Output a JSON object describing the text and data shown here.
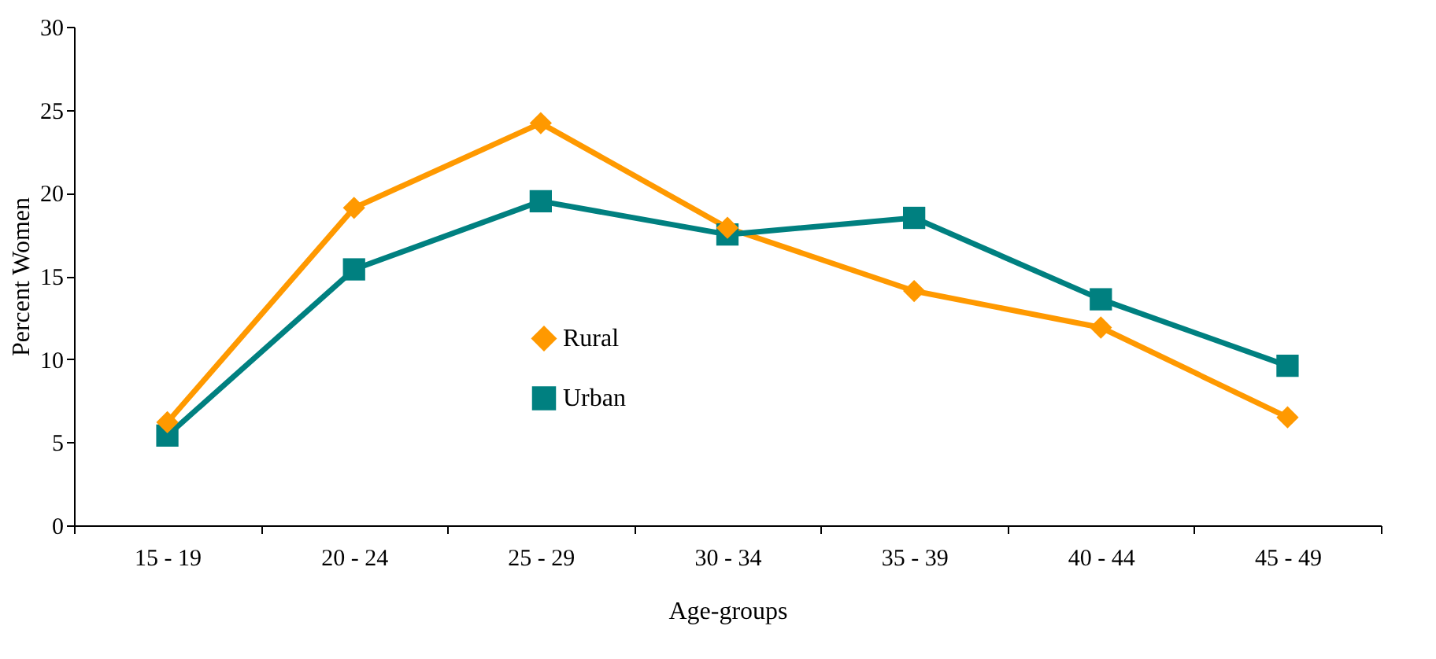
{
  "chart_data": {
    "type": "line",
    "xlabel": "Age-groups",
    "ylabel": "Percent Women",
    "categories": [
      "15 - 19",
      "20 - 24",
      "25 - 29",
      "30 - 34",
      "35 - 39",
      "40 - 44",
      "45 - 49"
    ],
    "series": [
      {
        "name": "Rural",
        "color": "#ff9900",
        "marker": "diamond",
        "values": [
          6.2,
          19.1,
          24.2,
          17.9,
          14.1,
          11.9,
          6.5
        ]
      },
      {
        "name": "Urban",
        "color": "#008080",
        "marker": "square",
        "values": [
          5.4,
          15.4,
          19.5,
          17.5,
          18.5,
          13.6,
          9.6
        ]
      }
    ],
    "ylim": [
      0,
      30
    ],
    "yticks": [
      0,
      5,
      10,
      15,
      20,
      25,
      30
    ],
    "grid": false,
    "legend": "center",
    "line_style": "solid"
  }
}
